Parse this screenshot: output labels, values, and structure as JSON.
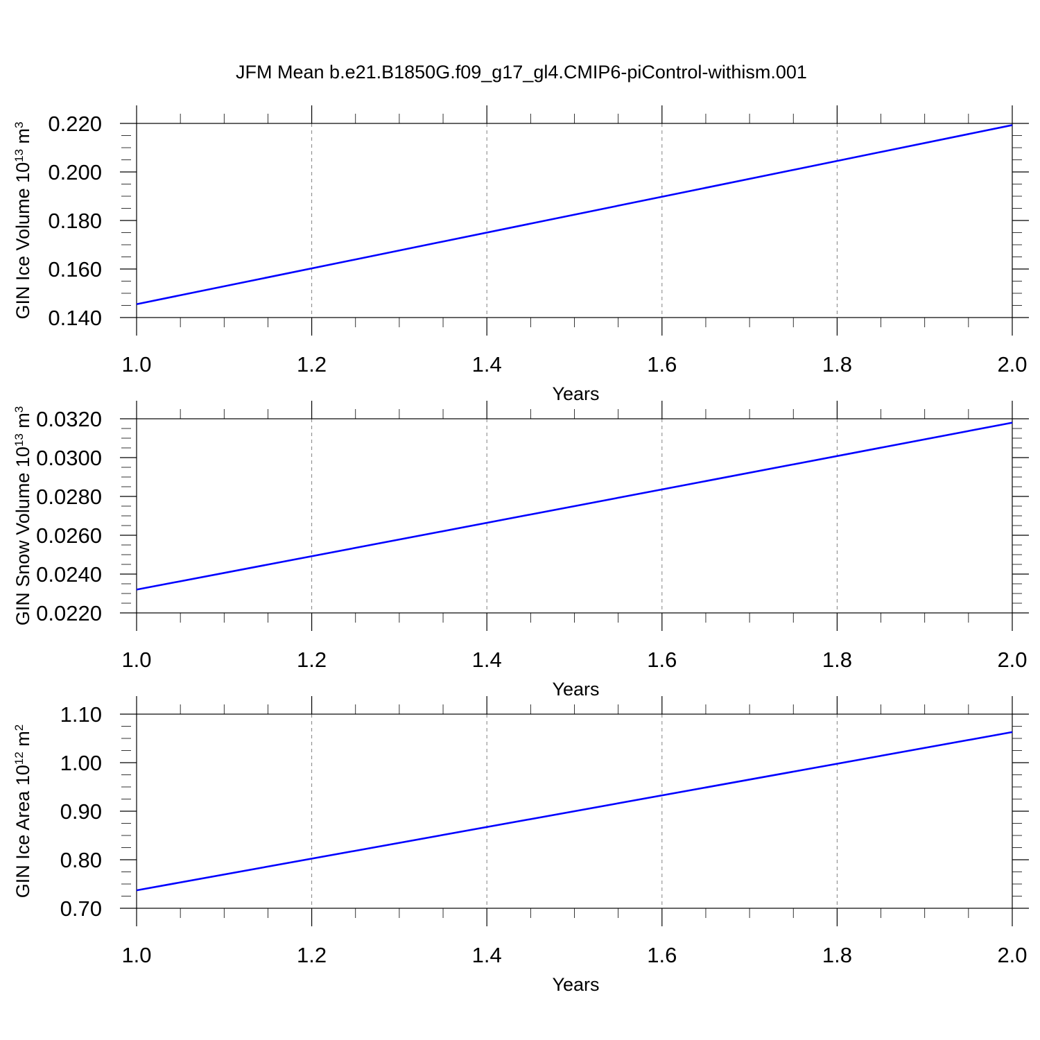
{
  "title": "JFM Mean b.e21.B1850G.f09_g17_gl4.CMIP6-piControl-withism.001",
  "colors": {
    "line": "#0000ff",
    "axis": "#000000",
    "grid": "#808080"
  },
  "chart_data": [
    {
      "type": "line",
      "xlabel": "Years",
      "ylabel": {
        "text": "GIN Ice Volume 10",
        "exp": "13",
        "unit": " m",
        "unit_exp": "3"
      },
      "x": [
        1.0,
        2.0
      ],
      "y": [
        0.1455,
        0.2193
      ],
      "xlim": [
        1.0,
        2.0
      ],
      "ylim": [
        0.14,
        0.22
      ],
      "xticks": [
        1.0,
        1.2,
        1.4,
        1.6,
        1.8,
        2.0
      ],
      "xtick_labels": [
        "1.0",
        "1.2",
        "1.4",
        "1.6",
        "1.8",
        "2.0"
      ],
      "yticks": [
        0.14,
        0.16,
        0.18,
        0.2,
        0.22
      ],
      "ytick_labels": [
        "0.140",
        "0.160",
        "0.180",
        "0.200",
        "0.220"
      ],
      "x_minor_step": 0.05,
      "y_minor_step": 0.005,
      "x_gridlines": true
    },
    {
      "type": "line",
      "xlabel": "Years",
      "ylabel": {
        "text": "GIN Snow Volume 10",
        "exp": "13",
        "unit": " m",
        "unit_exp": "3"
      },
      "x": [
        1.0,
        2.0
      ],
      "y": [
        0.0232,
        0.0318
      ],
      "xlim": [
        1.0,
        2.0
      ],
      "ylim": [
        0.022,
        0.032
      ],
      "xticks": [
        1.0,
        1.2,
        1.4,
        1.6,
        1.8,
        2.0
      ],
      "xtick_labels": [
        "1.0",
        "1.2",
        "1.4",
        "1.6",
        "1.8",
        "2.0"
      ],
      "yticks": [
        0.022,
        0.024,
        0.026,
        0.028,
        0.03,
        0.032
      ],
      "ytick_labels": [
        "0.0220",
        "0.0240",
        "0.0260",
        "0.0280",
        "0.0300",
        "0.0320"
      ],
      "x_minor_step": 0.05,
      "y_minor_step": 0.0005,
      "x_gridlines": true
    },
    {
      "type": "line",
      "xlabel": "Years",
      "ylabel": {
        "text": "GIN Ice Area 10",
        "exp": "12",
        "unit": " m",
        "unit_exp": "2"
      },
      "x": [
        1.0,
        2.0
      ],
      "y": [
        0.737,
        1.063
      ],
      "xlim": [
        1.0,
        2.0
      ],
      "ylim": [
        0.7,
        1.1
      ],
      "xticks": [
        1.0,
        1.2,
        1.4,
        1.6,
        1.8,
        2.0
      ],
      "xtick_labels": [
        "1.0",
        "1.2",
        "1.4",
        "1.6",
        "1.8",
        "2.0"
      ],
      "yticks": [
        0.7,
        0.8,
        0.9,
        1.0,
        1.1
      ],
      "ytick_labels": [
        "0.70",
        "0.80",
        "0.90",
        "1.00",
        "1.10"
      ],
      "x_minor_step": 0.05,
      "y_minor_step": 0.025,
      "x_gridlines": true
    }
  ]
}
